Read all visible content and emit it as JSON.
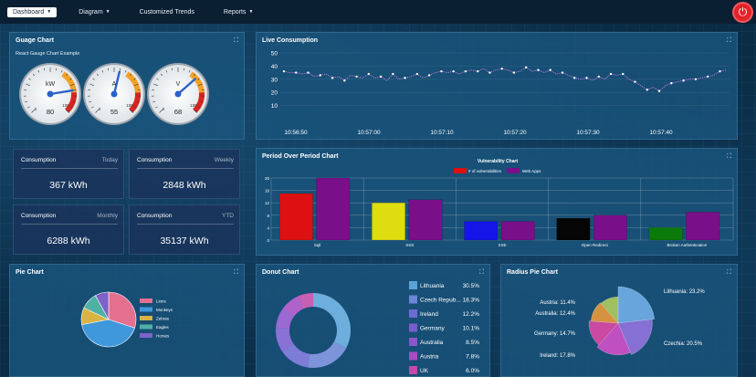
{
  "nav": {
    "dashboard": "Dashboard",
    "diagram": "Diagram",
    "custom": "Customized Trends",
    "reports": "Reports"
  },
  "gauge": {
    "title": "Guage Chart",
    "subtitle": "React Gauge Chart Example",
    "gauges": [
      {
        "unit": "kW",
        "value": "80",
        "max": "100",
        "min": "0",
        "frac": 0.8
      },
      {
        "unit": "A",
        "value": "55",
        "max": "100",
        "min": "0",
        "frac": 0.55
      },
      {
        "unit": "V",
        "value": "68",
        "max": "100",
        "min": "0",
        "frac": 0.68
      }
    ]
  },
  "live": {
    "title": "Live Consumption",
    "chart_data": {
      "type": "line",
      "ylim": [
        0,
        50
      ],
      "yticks": [
        "50",
        "40",
        "30",
        "20",
        "10"
      ],
      "xticks": [
        "10:56:50",
        "10:57:00",
        "10:57:10",
        "10:57:20",
        "10:57:30",
        "10:57:40"
      ],
      "values": [
        36,
        35,
        35,
        34,
        35,
        32,
        33,
        34,
        31,
        32,
        29,
        33,
        32,
        31,
        34,
        31,
        32,
        29,
        34,
        30,
        31,
        32,
        34,
        31,
        33,
        35,
        36,
        35,
        36,
        34,
        36,
        37,
        36,
        38,
        35,
        37,
        38,
        37,
        35,
        36,
        39,
        36,
        37,
        35,
        37,
        34,
        35,
        33,
        31,
        30,
        31,
        29,
        32,
        30,
        34,
        33,
        34,
        30,
        28,
        25,
        22,
        24,
        21,
        25,
        27,
        28,
        29,
        30,
        30,
        31,
        32,
        33,
        36,
        37
      ]
    }
  },
  "stats": [
    {
      "label": "Consumption",
      "period": "Today",
      "value": "367 kWh"
    },
    {
      "label": "Consumption",
      "period": "Weekly",
      "value": "2848 kWh"
    },
    {
      "label": "Consumption",
      "period": "Monthly",
      "value": "6288 kWh"
    },
    {
      "label": "Consumption",
      "period": "YTD",
      "value": "35137 kWh"
    }
  ],
  "pop": {
    "title": "Period Over Period Chart",
    "chart_data": {
      "type": "bar",
      "title": "Vulnerability Chart",
      "ylim": [
        0,
        20
      ],
      "yticks": [
        "20",
        "16",
        "12",
        "8",
        "4",
        "0"
      ],
      "categories": [
        "Sqli",
        "XSS",
        "XXE",
        "Open Redirect",
        "Broken Authentication"
      ],
      "series": [
        {
          "name": "# of vulnerabilities",
          "values": [
            15,
            12,
            6,
            7,
            4
          ],
          "colors": [
            "#dd1111",
            "#dddd10",
            "#1515e8",
            "#050505",
            "#0a7a0a"
          ]
        },
        {
          "name": "Web Apps",
          "values": [
            20,
            13,
            6,
            8,
            9
          ],
          "colors": [
            "#7a0f8a",
            "#7a0f8a",
            "#7a0f8a",
            "#7a0f8a",
            "#7a0f8a"
          ]
        }
      ],
      "legend": "top"
    }
  },
  "pie": {
    "title": "Pie Chart",
    "chart_data": {
      "type": "pie",
      "labels": [
        "Lions",
        "Monkeys",
        "Zebras",
        "Eagles",
        "Horses"
      ],
      "values": [
        30,
        42,
        10,
        10,
        8
      ],
      "colors": [
        "#e56f8f",
        "#3f98db",
        "#d9b344",
        "#4fb0a4",
        "#7d62c8"
      ]
    }
  },
  "donut": {
    "title": "Donut Chart",
    "chart_data": {
      "type": "pie",
      "labels": [
        "Lithuania",
        "Czech Repub...",
        "Ireland",
        "Germany",
        "Australia",
        "Austria",
        "UK"
      ],
      "percents": [
        "30.5%",
        "18.3%",
        "12.2%",
        "10.1%",
        "8.5%",
        "7.8%",
        "6.0%"
      ],
      "values": [
        30.5,
        18.3,
        12.2,
        10.1,
        8.5,
        7.8,
        6.0
      ],
      "colors": [
        "#5aa3d8",
        "#6b86d6",
        "#6b6bd2",
        "#7a5ed0",
        "#8d55cc",
        "#a64dc4",
        "#c14aa8"
      ]
    }
  },
  "radius": {
    "title": "Radius Pie Chart",
    "chart_data": {
      "type": "pie",
      "labels": [
        "Lithuania: 23.2%",
        "Czechia: 20.5%",
        "Ireland: 17.8%",
        "Germany: 14.7%",
        "Australia: 12.4%",
        "Austria: 11.4%"
      ],
      "values": [
        23.2,
        20.5,
        17.8,
        14.7,
        12.4,
        11.4
      ],
      "colors": [
        "#67a5dc",
        "#8670d4",
        "#c04fc0",
        "#c94aa0",
        "#d59342",
        "#9ec060"
      ]
    }
  }
}
